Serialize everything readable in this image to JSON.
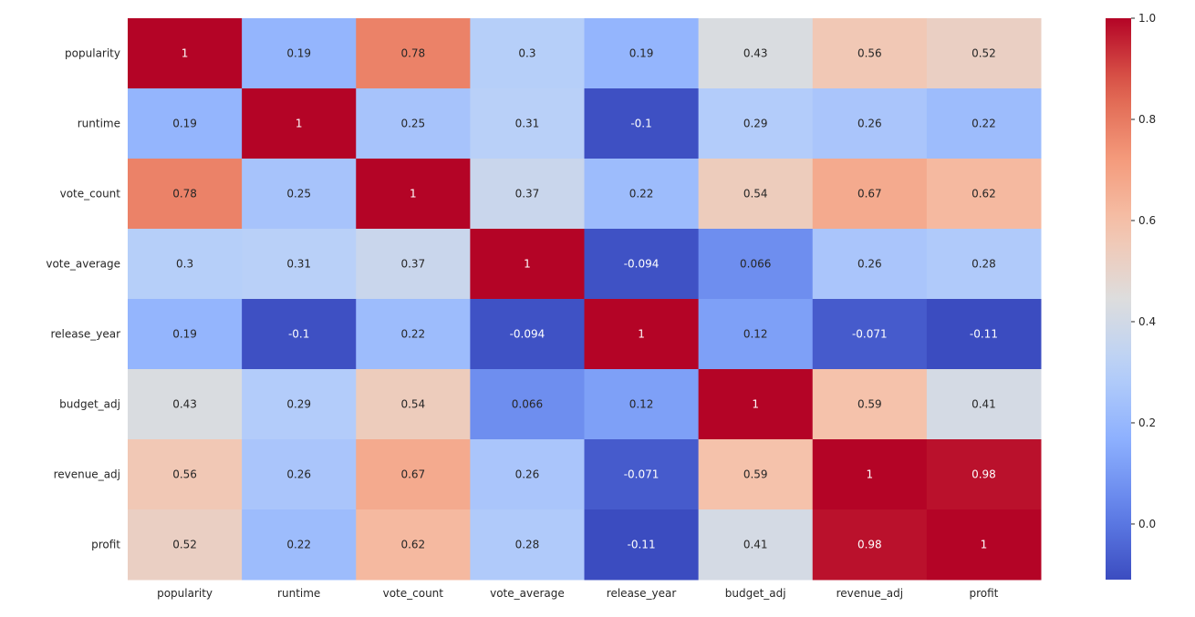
{
  "chart_data": {
    "type": "heatmap",
    "title": "",
    "xlabel": "",
    "ylabel": "",
    "rows": [
      "popularity",
      "runtime",
      "vote_count",
      "vote_average",
      "release_year",
      "budget_adj",
      "revenue_adj",
      "profit"
    ],
    "columns": [
      "popularity",
      "runtime",
      "vote_count",
      "vote_average",
      "release_year",
      "budget_adj",
      "revenue_adj",
      "profit"
    ],
    "values": [
      [
        1,
        0.19,
        0.78,
        0.3,
        0.19,
        0.43,
        0.56,
        0.52
      ],
      [
        0.19,
        1,
        0.25,
        0.31,
        -0.1,
        0.29,
        0.26,
        0.22
      ],
      [
        0.78,
        0.25,
        1,
        0.37,
        0.22,
        0.54,
        0.67,
        0.62
      ],
      [
        0.3,
        0.31,
        0.37,
        1,
        -0.094,
        0.066,
        0.26,
        0.28
      ],
      [
        0.19,
        -0.1,
        0.22,
        -0.094,
        1,
        0.12,
        -0.071,
        -0.11
      ],
      [
        0.43,
        0.29,
        0.54,
        0.066,
        0.12,
        1,
        0.59,
        0.41
      ],
      [
        0.56,
        0.26,
        0.67,
        0.26,
        -0.071,
        0.59,
        1,
        0.98
      ],
      [
        0.52,
        0.22,
        0.62,
        0.28,
        -0.11,
        0.41,
        0.98,
        1
      ]
    ],
    "cell_labels": [
      [
        "1",
        "0.19",
        "0.78",
        "0.3",
        "0.19",
        "0.43",
        "0.56",
        "0.52"
      ],
      [
        "0.19",
        "1",
        "0.25",
        "0.31",
        "-0.1",
        "0.29",
        "0.26",
        "0.22"
      ],
      [
        "0.78",
        "0.25",
        "1",
        "0.37",
        "0.22",
        "0.54",
        "0.67",
        "0.62"
      ],
      [
        "0.3",
        "0.31",
        "0.37",
        "1",
        "-0.094",
        "0.066",
        "0.26",
        "0.28"
      ],
      [
        "0.19",
        "-0.1",
        "0.22",
        "-0.094",
        "1",
        "0.12",
        "-0.071",
        "-0.11"
      ],
      [
        "0.43",
        "0.29",
        "0.54",
        "0.066",
        "0.12",
        "1",
        "0.59",
        "0.41"
      ],
      [
        "0.56",
        "0.26",
        "0.67",
        "0.26",
        "-0.071",
        "0.59",
        "1",
        "0.98"
      ],
      [
        "0.52",
        "0.22",
        "0.62",
        "0.28",
        "-0.11",
        "0.41",
        "0.98",
        "1"
      ]
    ],
    "colormap": "coolwarm",
    "colorbar": {
      "min": -0.11,
      "max": 1.0,
      "ticks": [
        0.0,
        0.2,
        0.4,
        0.6,
        0.8,
        1.0
      ],
      "tick_labels": [
        "0.0",
        "0.2",
        "0.4",
        "0.6",
        "0.8",
        "1.0"
      ]
    },
    "grid": false,
    "legend": "colorbar-right"
  }
}
